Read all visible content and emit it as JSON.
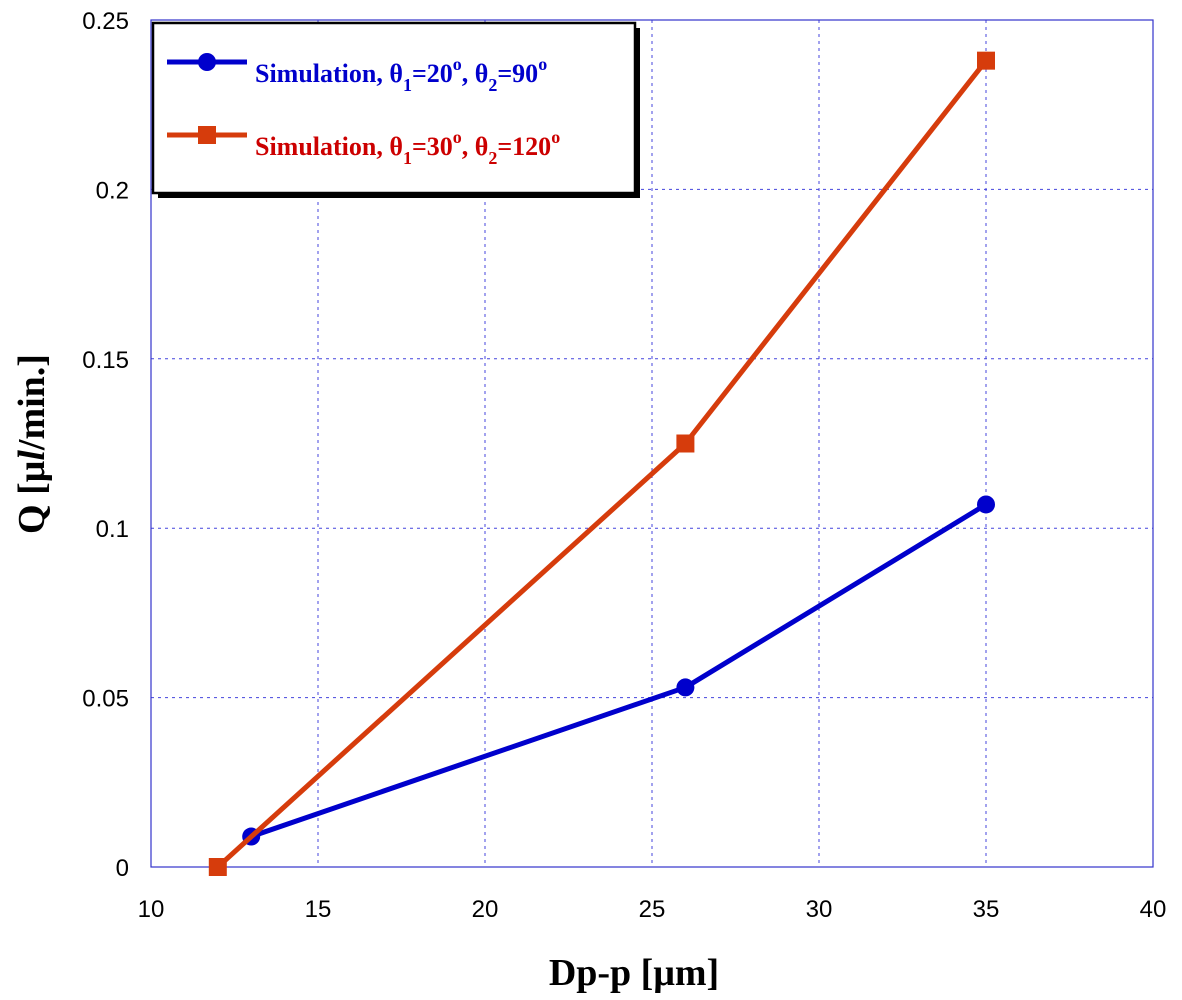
{
  "chart_data": {
    "type": "line",
    "title": "",
    "xlabel": "Dp-p [μm]",
    "ylabel": "Q [μl/min.]",
    "ylabel_parts": {
      "pre": "Q [μ",
      "italic": "l",
      "post": "/min.]"
    },
    "xlim": [
      10,
      40
    ],
    "ylim": [
      0,
      0.25
    ],
    "xticks": [
      10,
      15,
      20,
      25,
      30,
      35,
      40
    ],
    "yticks": [
      0,
      0.05,
      0.1,
      0.15,
      0.2,
      0.25
    ],
    "xtick_labels": [
      "10",
      "15",
      "20",
      "25",
      "30",
      "35",
      "40"
    ],
    "ytick_labels": [
      "0",
      "0.05",
      "0.1",
      "0.15",
      "0.2",
      "0.25"
    ],
    "grid": true,
    "legend_position": "top-left",
    "series": [
      {
        "name": "Simulation, θ1=20o, θ2=90o",
        "label_parts": {
          "a": "Simulation, θ",
          "s1": "1",
          "b": "=20",
          "o1": "o",
          "c": ", θ",
          "s2": "2",
          "d": "=90",
          "o2": "o"
        },
        "color": "#0000cc",
        "marker": "circle",
        "x": [
          13,
          26,
          35
        ],
        "y": [
          0.009,
          0.053,
          0.107
        ]
      },
      {
        "name": "Simulation, θ1=30o, θ2=120o",
        "label_parts": {
          "a": "Simulation, θ",
          "s1": "1",
          "b": "=30",
          "o1": "o",
          "c": ", θ",
          "s2": "2",
          "d": "=120",
          "o2": "o"
        },
        "line_color": "#d63c0c",
        "text_color": "#cc0000",
        "marker": "square",
        "x": [
          12,
          26,
          35
        ],
        "y": [
          0.0,
          0.125,
          0.238
        ]
      }
    ]
  }
}
